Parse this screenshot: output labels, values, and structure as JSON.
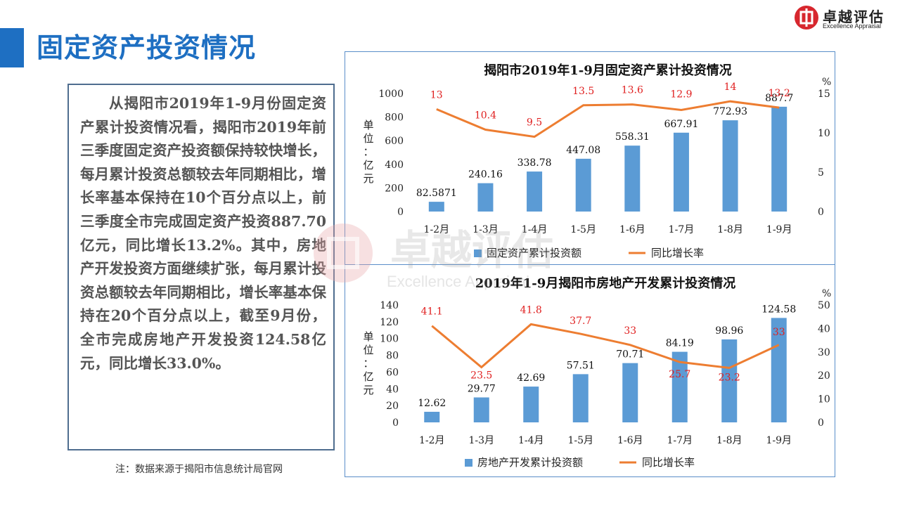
{
  "page": {
    "title": "固定资产投资情况",
    "logo_name": "卓越评估",
    "logo_sub": "Excellence Appraisal",
    "body_text": "从揭阳市2019年1-9月份固定资产累计投资情况看，揭阳市2019年前三季度固定资产投资额保持较快增长，每月累计投资总额较去年同期相比，增长率基本保持在10个百分点以上，前三季度全市完成固定资产投资887.70亿元，同比增长13.2%。其中，房地产开发投资方面继续扩张，每月累计投资总额较去年同期相比，增长率基本保持在20个百分点以上，截至9月份，全市完成房地产开发投资124.58亿元，同比增长33.0%。",
    "note": "注：数据来源于揭阳市信息统计局官网",
    "watermark_text": "卓越评估",
    "watermark_sub": "Excellence Appraisal"
  },
  "chart_data": [
    {
      "type": "bar",
      "title": "揭阳市2019年1-9月固定资产累计投资情况",
      "categories": [
        "1-2月",
        "1-3月",
        "1-4月",
        "1-5月",
        "1-6月",
        "1-7月",
        "1-8月",
        "1-9月"
      ],
      "series": [
        {
          "name": "固定资产累计投资额",
          "type": "bar",
          "axis": "left",
          "color": "#5b9bd5",
          "values": [
            82.5871,
            240.16,
            338.78,
            447.08,
            558.31,
            667.91,
            772.93,
            887.7
          ],
          "labels": [
            "82.5871",
            "240.16",
            "338.78",
            "447.08",
            "558.31",
            "667.91",
            "772.93",
            "887.7"
          ]
        },
        {
          "name": "同比增长率",
          "type": "line",
          "axis": "right",
          "color": "#ed7d31",
          "values": [
            13,
            10.4,
            9.5,
            13.5,
            13.6,
            12.9,
            14,
            13.2
          ],
          "labels": [
            "13",
            "10.4",
            "9.5",
            "13.5",
            "13.6",
            "12.9",
            "14",
            "13.2"
          ]
        }
      ],
      "ylabel": "单位：亿元",
      "y2label": "%",
      "ylim": [
        0,
        1000
      ],
      "yticks": [
        0,
        200,
        400,
        600,
        800,
        1000
      ],
      "y2lim": [
        0,
        15
      ],
      "y2ticks": [
        0,
        5,
        10,
        15
      ],
      "legend": "bottom"
    },
    {
      "type": "bar",
      "title": "2019年1-9月揭阳市房地产开发累计投资情况",
      "categories": [
        "1-2月",
        "1-3月",
        "1-4月",
        "1-5月",
        "1-6月",
        "1-7月",
        "1-8月",
        "1-9月"
      ],
      "series": [
        {
          "name": "房地产开发累计投资额",
          "type": "bar",
          "axis": "left",
          "color": "#5b9bd5",
          "values": [
            12.62,
            29.77,
            42.69,
            57.51,
            70.71,
            84.19,
            98.96,
            124.58
          ],
          "labels": [
            "12.62",
            "29.77",
            "42.69",
            "57.51",
            "70.71",
            "84.19",
            "98.96",
            "124.58"
          ]
        },
        {
          "name": "同比增长率",
          "type": "line",
          "axis": "right",
          "color": "#ed7d31",
          "values": [
            41.1,
            23.5,
            41.8,
            37.7,
            33,
            25.7,
            23.2,
            33
          ],
          "labels": [
            "41.1",
            "23.5",
            "41.8",
            "37.7",
            "33",
            "25.7",
            "23.2",
            "33"
          ]
        }
      ],
      "ylabel": "单位：亿元",
      "y2label": "%",
      "ylim": [
        0,
        140
      ],
      "yticks": [
        0,
        20,
        40,
        60,
        80,
        100,
        120,
        140
      ],
      "y2lim": [
        0,
        50
      ],
      "y2ticks": [
        0,
        10,
        20,
        30,
        40,
        50
      ],
      "legend": "bottom"
    }
  ]
}
